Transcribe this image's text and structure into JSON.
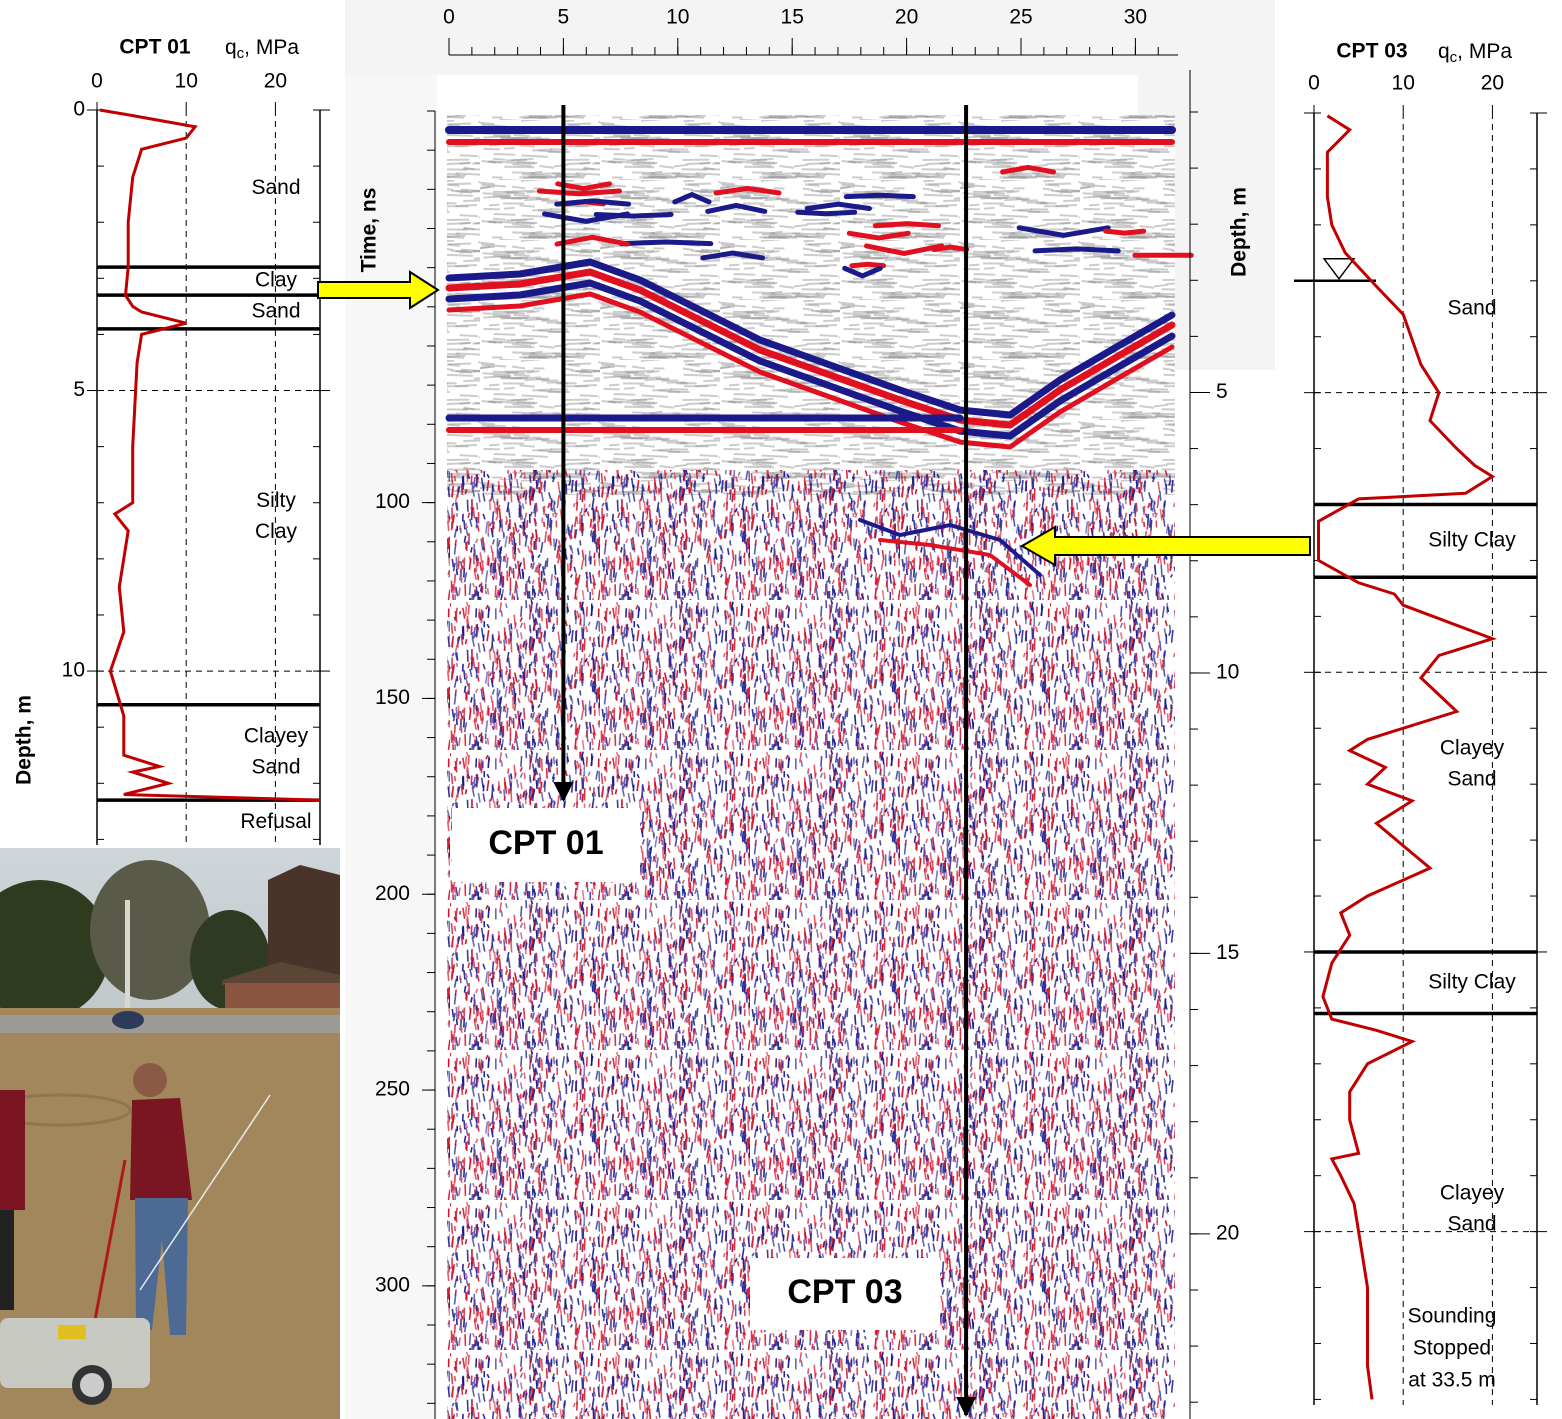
{
  "chart_data": [
    {
      "type": "line",
      "title": "CPT 01",
      "x_label": {
        "symbol": "q",
        "subscript": "c",
        "unit": ", MPa"
      },
      "y_label": "Depth, m",
      "xlim": [
        0,
        25
      ],
      "xticks": [
        0,
        10,
        20
      ],
      "ylim": [
        0,
        13.1
      ],
      "yticks": [
        0,
        5,
        10
      ],
      "minor_ystep": 1,
      "ytick_labels": true,
      "grid": true,
      "series": [
        {
          "color": "#c00000",
          "x": [
            0.3,
            4,
            11,
            10,
            5,
            4,
            3.5,
            3.5,
            3.2,
            4,
            5,
            10,
            5,
            4.5,
            4,
            4,
            2,
            3.5,
            2.5,
            3,
            1.5,
            3,
            3,
            7,
            4,
            8,
            3,
            25
          ],
          "y": [
            0,
            0.1,
            0.3,
            0.5,
            0.7,
            1.2,
            2,
            2.8,
            3.3,
            3.5,
            3.6,
            3.8,
            4,
            4.5,
            6,
            7,
            7.2,
            7.5,
            8.5,
            9.3,
            10,
            10.8,
            11.5,
            11.7,
            11.8,
            12,
            12.2,
            12.3
          ]
        }
      ],
      "layer_boundaries": [
        2.8,
        3.3,
        3.9,
        10.6,
        12.3
      ],
      "layers": [
        [
          "Sand"
        ],
        [
          "Clay"
        ],
        [
          "Sand"
        ],
        [
          "Silty",
          "Clay"
        ],
        [
          "Clayey",
          "Sand"
        ],
        [
          "Refusal"
        ]
      ]
    },
    {
      "type": "line",
      "title": "CPT 03",
      "x_label": {
        "symbol": "q",
        "subscript": "c",
        "unit": ", MPa"
      },
      "xlim": [
        0,
        25
      ],
      "xticks": [
        0,
        10,
        20
      ],
      "ylim": [
        0,
        23.1
      ],
      "yticks": [
        0,
        5,
        10,
        15,
        20
      ],
      "minor_ystep": 1,
      "ytick_labels": false,
      "grid": true,
      "water_table": 3.0,
      "series": [
        {
          "color": "#c00000",
          "x": [
            1.5,
            4,
            1.5,
            1.5,
            2,
            3.5,
            7,
            10,
            12,
            14,
            13,
            16,
            18,
            20,
            17,
            5,
            0.5,
            0.5,
            5,
            9,
            10,
            20,
            14,
            12,
            16,
            6,
            4,
            8,
            6,
            11,
            7,
            13,
            6,
            3,
            4,
            2,
            1,
            2,
            7,
            11,
            6,
            4,
            4,
            5,
            2,
            3,
            4.5,
            5,
            6,
            6,
            6.5
          ],
          "y": [
            0.05,
            0.3,
            0.7,
            1.5,
            2,
            2.5,
            3.1,
            3.6,
            4.5,
            5,
            5.5,
            6,
            6.3,
            6.5,
            6.8,
            6.9,
            7.3,
            8,
            8.4,
            8.6,
            8.8,
            9.4,
            9.7,
            10.1,
            10.7,
            11.2,
            11.4,
            11.7,
            12,
            12.3,
            12.7,
            13.5,
            14,
            14.3,
            14.7,
            15.2,
            15.8,
            16.2,
            16.4,
            16.6,
            17,
            17.5,
            18,
            18.6,
            18.7,
            19,
            19.5,
            20,
            21,
            22.4,
            23
          ]
        }
      ],
      "layer_boundaries": [
        7.0,
        8.3,
        15.0,
        16.1
      ],
      "layers": [
        [
          "Sand"
        ],
        [
          "Silty Clay"
        ],
        [
          "Clayey",
          "Sand"
        ],
        [
          "Silty Clay"
        ],
        [
          "Clayey",
          "Sand"
        ]
      ],
      "annotation": [
        "Sounding",
        "Stopped",
        "at 33.5 m"
      ]
    },
    {
      "type": "radargram",
      "xlim": [
        0,
        31.6
      ],
      "xticks": [
        0,
        5,
        10,
        15,
        20,
        25,
        30
      ],
      "minor_xstep": 1,
      "y_label": "Time, ns",
      "ylim": [
        0,
        334
      ],
      "yticks": [
        100,
        150,
        200,
        250,
        300
      ],
      "minor_ystep": 10,
      "y2_label": "Depth, m",
      "y2lim": [
        0,
        23.3
      ],
      "y2ticks": [
        5,
        10,
        15,
        20
      ],
      "minor_y2step": 1,
      "markers": [
        {
          "label": "CPT 01",
          "x": 5
        },
        {
          "label": "CPT 03",
          "x": 22.6
        }
      ]
    }
  ]
}
